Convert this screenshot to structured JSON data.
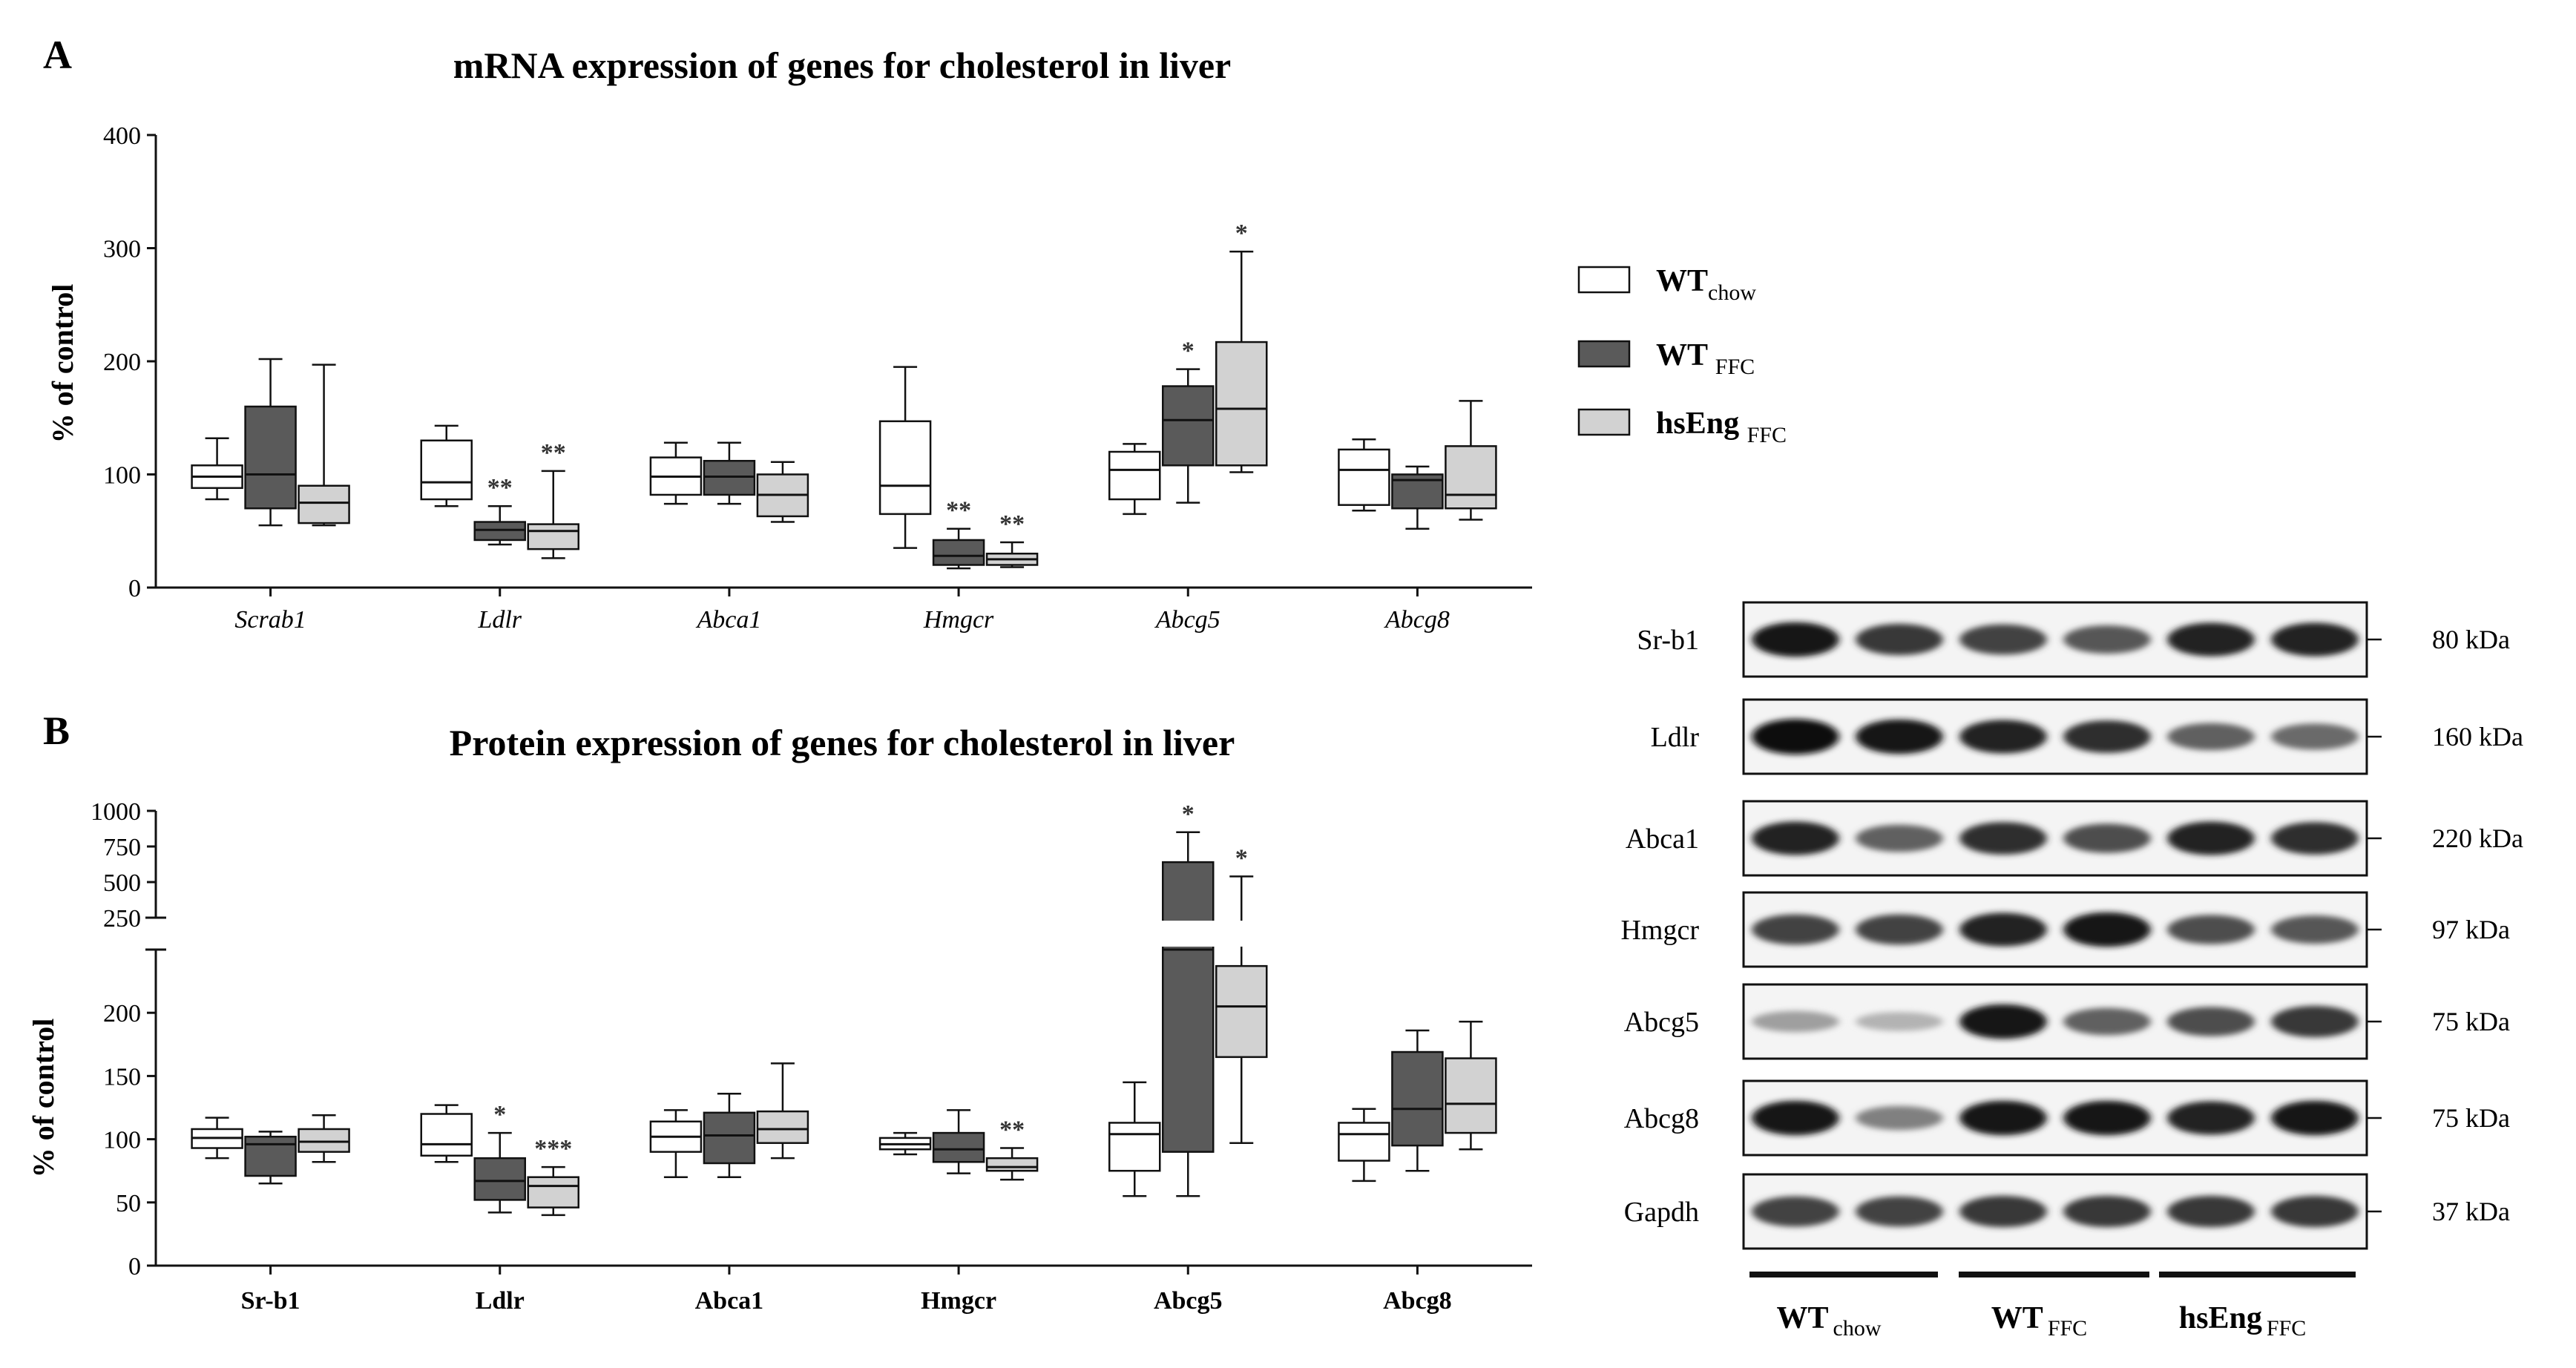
{
  "colors": {
    "wt_chow": "#ffffff",
    "wt_ffc": "#5a5a5a",
    "hseng_ffc": "#d2d2d2",
    "axis": "#111111"
  },
  "legend": {
    "items": [
      {
        "main": "WT",
        "sub": "chow",
        "color": "#ffffff"
      },
      {
        "main": "WT ",
        "sub": "FFC",
        "color": "#5a5a5a"
      },
      {
        "main": "hsEng ",
        "sub": "FFC",
        "color": "#d2d2d2"
      }
    ]
  },
  "chart_data": [
    {
      "type": "box",
      "panel": "A",
      "title": "mRNA expression of genes for cholesterol in liver",
      "ylabel": "% of control",
      "ylim": [
        0,
        400
      ],
      "yticks": [
        0,
        100,
        200,
        300,
        400
      ],
      "categories": [
        "Scrab1",
        "Ldlr",
        "Abca1",
        "Hmgcr",
        "Abcg5",
        "Abcg8"
      ],
      "series": [
        {
          "name": "WT chow",
          "color": "#ffffff",
          "boxes": [
            {
              "min": 78,
              "q1": 88,
              "median": 98,
              "q3": 108,
              "max": 132
            },
            {
              "min": 72,
              "q1": 78,
              "median": 93,
              "q3": 130,
              "max": 143
            },
            {
              "min": 74,
              "q1": 82,
              "median": 98,
              "q3": 115,
              "max": 128
            },
            {
              "min": 35,
              "q1": 65,
              "median": 90,
              "q3": 147,
              "max": 195
            },
            {
              "min": 65,
              "q1": 78,
              "median": 104,
              "q3": 120,
              "max": 127
            },
            {
              "min": 68,
              "q1": 73,
              "median": 104,
              "q3": 122,
              "max": 131
            }
          ]
        },
        {
          "name": "WT FFC",
          "color": "#5a5a5a",
          "boxes": [
            {
              "min": 55,
              "q1": 70,
              "median": 100,
              "q3": 160,
              "max": 202
            },
            {
              "min": 38,
              "q1": 42,
              "median": 51,
              "q3": 58,
              "max": 72
            },
            {
              "min": 74,
              "q1": 82,
              "median": 98,
              "q3": 112,
              "max": 128
            },
            {
              "min": 17,
              "q1": 20,
              "median": 28,
              "q3": 42,
              "max": 52
            },
            {
              "min": 75,
              "q1": 108,
              "median": 148,
              "q3": 178,
              "max": 193
            },
            {
              "min": 52,
              "q1": 70,
              "median": 95,
              "q3": 100,
              "max": 107
            }
          ]
        },
        {
          "name": "hsEng FFC",
          "color": "#d2d2d2",
          "boxes": [
            {
              "min": 55,
              "q1": 57,
              "median": 75,
              "q3": 90,
              "max": 197
            },
            {
              "min": 26,
              "q1": 34,
              "median": 50,
              "q3": 56,
              "max": 103
            },
            {
              "min": 58,
              "q1": 63,
              "median": 82,
              "q3": 100,
              "max": 111
            },
            {
              "min": 18,
              "q1": 20,
              "median": 25,
              "q3": 30,
              "max": 40
            },
            {
              "min": 102,
              "q1": 108,
              "median": 158,
              "q3": 217,
              "max": 297
            },
            {
              "min": 60,
              "q1": 70,
              "median": 82,
              "q3": 125,
              "max": 165
            }
          ]
        }
      ],
      "annotations": [
        {
          "category": "Ldlr",
          "series": 1,
          "text": "**"
        },
        {
          "category": "Ldlr",
          "series": 2,
          "text": "**"
        },
        {
          "category": "Hmgcr",
          "series": 1,
          "text": "**"
        },
        {
          "category": "Hmgcr",
          "series": 2,
          "text": "**"
        },
        {
          "category": "Abcg5",
          "series": 1,
          "text": "*"
        },
        {
          "category": "Abcg5",
          "series": 2,
          "text": "*"
        }
      ]
    },
    {
      "type": "box",
      "panel": "B",
      "title": "Protein expression of genes for cholesterol in liver",
      "ylabel": "% of control",
      "y_break": {
        "lower": [
          0,
          250
        ],
        "upper": [
          250,
          1000
        ]
      },
      "yticks_lower": [
        0,
        50,
        100,
        150,
        200
      ],
      "yticks_upper": [
        250,
        500,
        750,
        1000
      ],
      "categories": [
        "Sr-b1",
        "Ldlr",
        "Abca1",
        "Hmgcr",
        "Abcg5",
        "Abcg8"
      ],
      "series": [
        {
          "name": "WT chow",
          "color": "#ffffff",
          "boxes": [
            {
              "min": 85,
              "q1": 93,
              "median": 101,
              "q3": 108,
              "max": 117
            },
            {
              "min": 82,
              "q1": 87,
              "median": 96,
              "q3": 120,
              "max": 127
            },
            {
              "min": 70,
              "q1": 90,
              "median": 102,
              "q3": 114,
              "max": 123
            },
            {
              "min": 88,
              "q1": 92,
              "median": 96,
              "q3": 101,
              "max": 105
            },
            {
              "min": 55,
              "q1": 75,
              "median": 104,
              "q3": 113,
              "max": 145
            },
            {
              "min": 67,
              "q1": 83,
              "median": 104,
              "q3": 113,
              "max": 124
            }
          ]
        },
        {
          "name": "WT FFC",
          "color": "#5a5a5a",
          "boxes": [
            {
              "min": 65,
              "q1": 71,
              "median": 96,
              "q3": 102,
              "max": 106
            },
            {
              "min": 42,
              "q1": 52,
              "median": 67,
              "q3": 85,
              "max": 105
            },
            {
              "min": 70,
              "q1": 81,
              "median": 103,
              "q3": 121,
              "max": 136
            },
            {
              "min": 73,
              "q1": 82,
              "median": 92,
              "q3": 105,
              "max": 123
            },
            {
              "min": 55,
              "q1": 90,
              "median": 250,
              "q3": 640,
              "max": 850
            },
            {
              "min": 75,
              "q1": 95,
              "median": 124,
              "q3": 169,
              "max": 186
            }
          ]
        },
        {
          "name": "hsEng FFC",
          "color": "#d2d2d2",
          "boxes": [
            {
              "min": 82,
              "q1": 90,
              "median": 98,
              "q3": 108,
              "max": 119
            },
            {
              "min": 40,
              "q1": 46,
              "median": 63,
              "q3": 70,
              "max": 78
            },
            {
              "min": 85,
              "q1": 97,
              "median": 108,
              "q3": 122,
              "max": 160
            },
            {
              "min": 68,
              "q1": 75,
              "median": 78,
              "q3": 85,
              "max": 93
            },
            {
              "min": 97,
              "q1": 165,
              "median": 205,
              "q3": 237,
              "max": 540
            },
            {
              "min": 92,
              "q1": 105,
              "median": 128,
              "q3": 164,
              "max": 193
            }
          ]
        }
      ],
      "annotations": [
        {
          "category": "Ldlr",
          "series": 1,
          "text": "*"
        },
        {
          "category": "Ldlr",
          "series": 2,
          "text": "***"
        },
        {
          "category": "Hmgcr",
          "series": 2,
          "text": "**"
        },
        {
          "category": "Abcg5",
          "series": 1,
          "text": "*"
        },
        {
          "category": "Abcg5",
          "series": 2,
          "text": "*"
        }
      ]
    }
  ],
  "blot": {
    "proteins": [
      {
        "name": "Sr-b1",
        "kda": "80 kDa",
        "intensity": [
          0.95,
          0.8,
          0.75,
          0.65,
          0.9,
          0.9
        ]
      },
      {
        "name": "Ldlr",
        "kda": "160 kDa",
        "intensity": [
          1.0,
          0.95,
          0.9,
          0.85,
          0.6,
          0.55
        ]
      },
      {
        "name": "Abca1",
        "kda": "220 kDa",
        "intensity": [
          0.9,
          0.6,
          0.85,
          0.7,
          0.9,
          0.85
        ]
      },
      {
        "name": "Hmgcr",
        "kda": "97 kDa",
        "intensity": [
          0.75,
          0.75,
          0.9,
          0.95,
          0.7,
          0.65
        ]
      },
      {
        "name": "Abcg5",
        "kda": "75 kDa",
        "intensity": [
          0.3,
          0.2,
          0.95,
          0.6,
          0.7,
          0.8
        ]
      },
      {
        "name": "Abcg8",
        "kda": "75 kDa",
        "intensity": [
          0.95,
          0.45,
          0.95,
          0.95,
          0.9,
          0.95
        ]
      },
      {
        "name": "Gapdh",
        "kda": "37 kDa",
        "intensity": [
          0.75,
          0.75,
          0.8,
          0.8,
          0.8,
          0.8
        ]
      }
    ],
    "groups": [
      {
        "main": "WT",
        "sub": "chow"
      },
      {
        "main": "WT",
        "sub": "FFC"
      },
      {
        "main": "hsEng",
        "sub": "FFC"
      }
    ]
  }
}
